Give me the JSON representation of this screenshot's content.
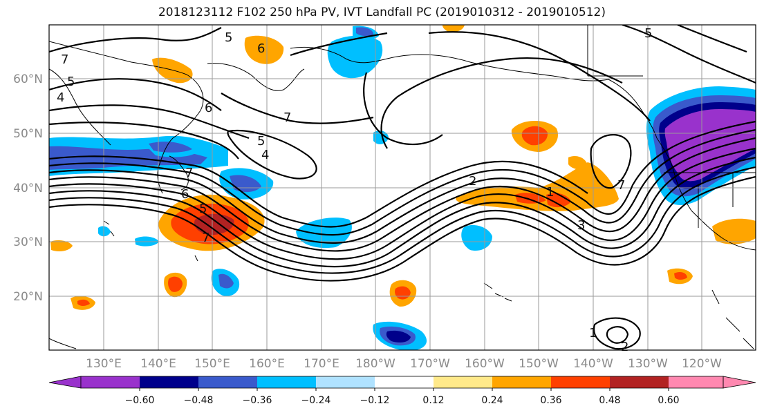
{
  "title": "2018123112 F102 250 hPa PV, IVT Landfall PC (2019010312 - 2019010512)",
  "map": {
    "lat_labels": [
      "60°N",
      "50°N",
      "40°N",
      "30°N",
      "20°N"
    ],
    "lon_labels": [
      "130°E",
      "140°E",
      "150°E",
      "160°E",
      "170°E",
      "180°W",
      "170°W",
      "160°W",
      "150°W",
      "140°W",
      "130°W",
      "120°W"
    ]
  },
  "contour_labels": [
    {
      "text": "7"
    },
    {
      "text": "5"
    },
    {
      "text": "4"
    },
    {
      "text": "6"
    },
    {
      "text": "5"
    },
    {
      "text": "6"
    },
    {
      "text": "7"
    },
    {
      "text": "5"
    },
    {
      "text": "4"
    },
    {
      "text": "7"
    },
    {
      "text": "6"
    },
    {
      "text": "5"
    },
    {
      "text": "7"
    },
    {
      "text": "2"
    },
    {
      "text": "3"
    },
    {
      "text": "1"
    },
    {
      "text": "7"
    },
    {
      "text": "1"
    },
    {
      "text": "2"
    },
    {
      "text": "5"
    }
  ],
  "colorbar": {
    "colors": [
      "#9932cc",
      "#00008b",
      "#3a5acc",
      "#00bfff",
      "#b0e2ff",
      "#ffffff",
      "#ffe98a",
      "#ffa500",
      "#ff4000",
      "#b22222",
      "#ff88b0"
    ],
    "tick_labels": [
      "−0.60",
      "−0.48",
      "−0.36",
      "−0.24",
      "−0.12",
      "0.12",
      "0.24",
      "0.36",
      "0.48",
      "0.60"
    ]
  }
}
